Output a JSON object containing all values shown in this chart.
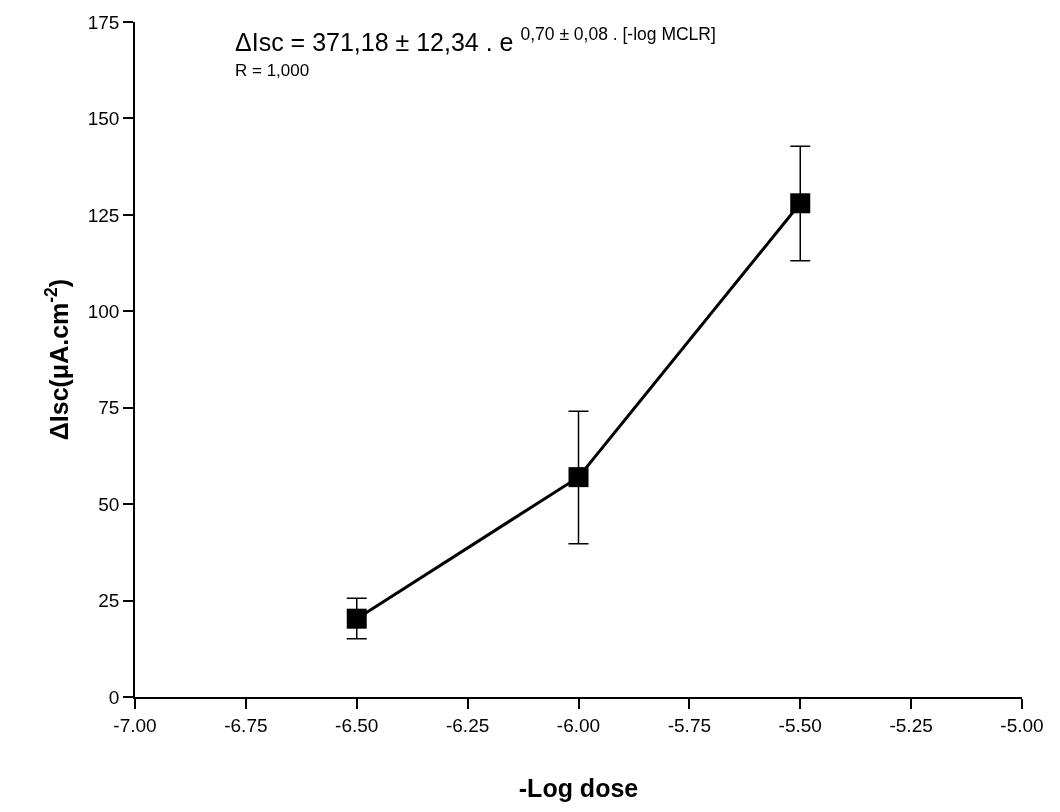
{
  "chart_data": {
    "type": "line",
    "xlabel": "-Log dose",
    "ylabel": "ΔIsc(μA.cm$^{-2}$)",
    "annotations": [
      "ΔIsc = 371,18 ± 12,34 . e $^{0,70 ± 0,08 . [-log MCLR]}$",
      "R = 1,000"
    ],
    "x": [
      -6.5,
      -6.0,
      -5.5
    ],
    "series": [
      {
        "color": "#000000",
        "values": [
          20.3,
          57,
          128
        ],
        "errors": [
          [
            15.1,
            25.6
          ],
          [
            39.7,
            74.1
          ],
          [
            113.1,
            142.8
          ]
        ]
      }
    ],
    "xlim": [
      -7.0,
      -5.0
    ],
    "xticks": [
      {
        "value": -7.0,
        "label": "-7.00"
      },
      {
        "value": -6.75,
        "label": "-6.75"
      },
      {
        "value": -6.5,
        "label": "-6.50"
      },
      {
        "value": -6.25,
        "label": "-6.25"
      },
      {
        "value": -6.0,
        "label": "-6.00"
      },
      {
        "value": -5.75,
        "label": "-5.75"
      },
      {
        "value": -5.5,
        "label": "-5.50"
      },
      {
        "value": -5.25,
        "label": "-5.25"
      },
      {
        "value": -5.0,
        "label": "-5.00"
      }
    ],
    "ylim": [
      0,
      175
    ],
    "yticks": [
      0,
      25,
      50,
      75,
      100,
      125,
      150,
      175
    ],
    "marker": "square",
    "line_style": "solid"
  }
}
